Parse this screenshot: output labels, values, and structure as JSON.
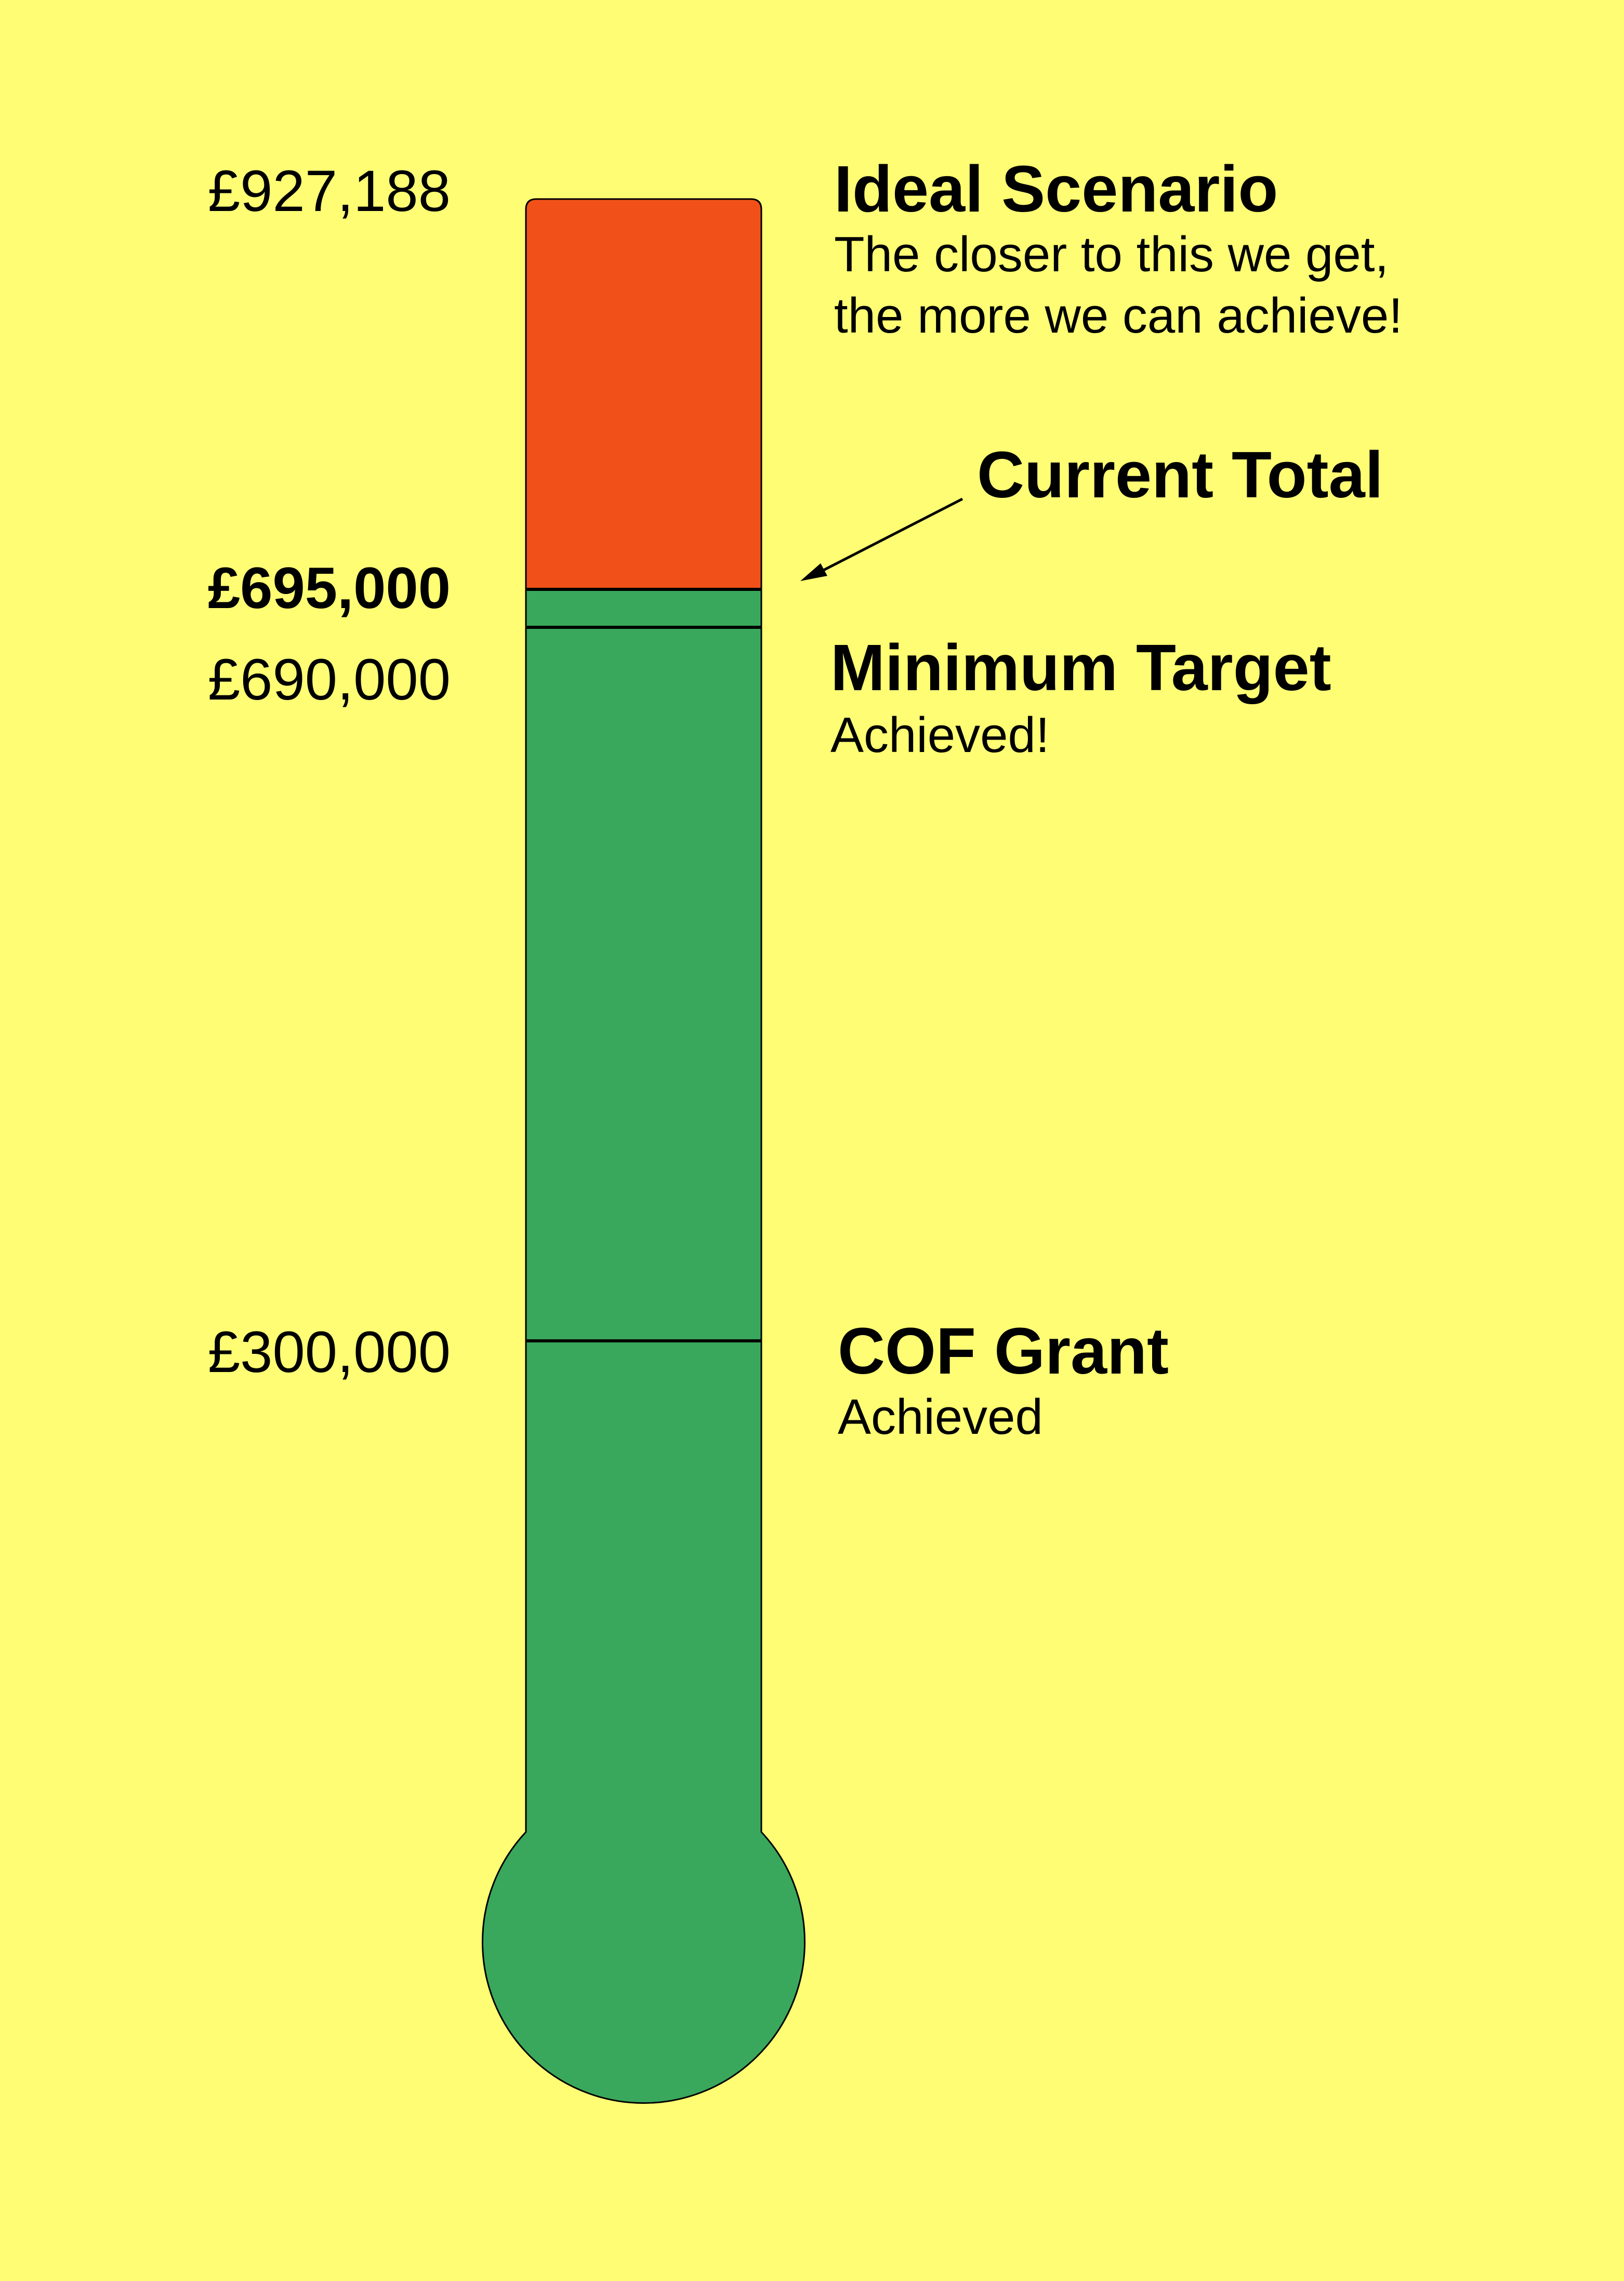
{
  "colors": {
    "background": "#fefd74",
    "reached": "#39a85c",
    "remaining": "#f15118",
    "outline": "#000000"
  },
  "chart_data": {
    "type": "thermometer",
    "max": 927188,
    "current": 695000,
    "markers": [
      {
        "value": 927188,
        "label": "£927,188",
        "heading": "Ideal Scenario",
        "lines": [
          "The closer to this we get,",
          "the more we can achieve!"
        ],
        "bold_value": false
      },
      {
        "value": 695000,
        "label": "£695,000",
        "heading": "Current Total",
        "lines": [],
        "bold_value": true
      },
      {
        "value": 690000,
        "label": "£690,000",
        "heading": "Minimum Target",
        "lines": [
          "Achieved!"
        ],
        "bold_value": false
      },
      {
        "value": 300000,
        "label": "£300,000",
        "heading": "COF Grant",
        "lines": [
          "Achieved"
        ],
        "bold_value": false
      }
    ]
  }
}
